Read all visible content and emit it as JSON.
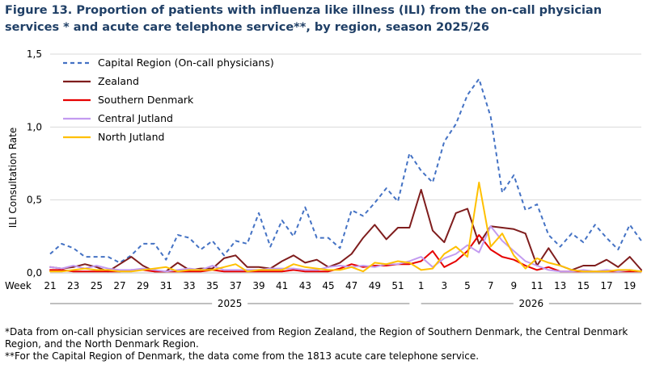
{
  "title": "Figure 13. Proportion of patients with influenza like illness (ILI) from the on-call physician services * and acute care telephone service**,  by region, season 2025/26",
  "footnotes": [
    "*Data from on-call physician services are received from Region Zealand, the Region of Southern Denmark, the Central Denmark Region, and the North Denmark Region.",
    "**For the Capital Region of Denmark, the data come from the 1813 acute care telephone service."
  ],
  "chart_data": {
    "type": "line",
    "title": "Figure 13. Proportion of patients with influenza like illness (ILI) from the on-call physician services * and acute care telephone service**,  by region, season 2025/26",
    "ylabel": "ILI Consultation Rate",
    "xlabel_prefix": "Week",
    "ylim": [
      0,
      1.5
    ],
    "yticks": [
      "0,0",
      "0,5",
      "1,0",
      "1,5"
    ],
    "grid": "horizontal",
    "legend": "top-left",
    "x": [
      21,
      22,
      23,
      24,
      25,
      26,
      27,
      28,
      29,
      30,
      31,
      32,
      33,
      34,
      35,
      36,
      37,
      38,
      39,
      40,
      41,
      42,
      43,
      44,
      45,
      46,
      47,
      48,
      49,
      50,
      51,
      52,
      1,
      2,
      3,
      4,
      5,
      6,
      7,
      8,
      9,
      10,
      11,
      12,
      13,
      14,
      15,
      16,
      17,
      18,
      19,
      20
    ],
    "xtick_labels": [
      "21",
      "23",
      "25",
      "27",
      "29",
      "31",
      "33",
      "35",
      "37",
      "39",
      "41",
      "43",
      "45",
      "47",
      "49",
      "51",
      "1",
      "3",
      "5",
      "7",
      "9",
      "11",
      "13",
      "15",
      "17",
      "19"
    ],
    "year_groups": [
      {
        "label": "2025",
        "from": 21,
        "to": 52
      },
      {
        "label": "2026",
        "from": 1,
        "to": 20
      }
    ],
    "series": [
      {
        "name": "Capital Region (On-call physicians)",
        "color": "#4472c4",
        "dash": "dashed",
        "values": [
          0.13,
          0.2,
          0.17,
          0.11,
          0.11,
          0.11,
          0.07,
          0.12,
          0.2,
          0.2,
          0.09,
          0.26,
          0.24,
          0.16,
          0.22,
          0.12,
          0.22,
          0.2,
          0.41,
          0.18,
          0.36,
          0.25,
          0.45,
          0.24,
          0.24,
          0.17,
          0.43,
          0.39,
          0.48,
          0.58,
          0.49,
          0.82,
          0.7,
          0.62,
          0.9,
          1.02,
          1.22,
          1.33,
          1.07,
          0.55,
          0.67,
          0.43,
          0.47,
          0.26,
          0.18,
          0.27,
          0.21,
          0.33,
          0.24,
          0.16,
          0.33,
          0.22
        ]
      },
      {
        "name": "Zealand",
        "color": "#7f1d1d",
        "dash": "solid",
        "values": [
          0.04,
          0.03,
          0.04,
          0.06,
          0.04,
          0.01,
          0.06,
          0.11,
          0.05,
          0.01,
          0.01,
          0.07,
          0.02,
          0.03,
          0.03,
          0.1,
          0.12,
          0.04,
          0.04,
          0.03,
          0.08,
          0.12,
          0.07,
          0.09,
          0.04,
          0.07,
          0.13,
          0.24,
          0.33,
          0.23,
          0.31,
          0.31,
          0.57,
          0.29,
          0.21,
          0.41,
          0.44,
          0.2,
          0.32,
          0.31,
          0.3,
          0.27,
          0.05,
          0.17,
          0.05,
          0.02,
          0.05,
          0.05,
          0.09,
          0.04,
          0.11,
          0.02
        ]
      },
      {
        "name": "Southern Denmark",
        "color": "#e60000",
        "dash": "solid",
        "values": [
          0.02,
          0.02,
          0.01,
          0.01,
          0.01,
          0.01,
          0.01,
          0.02,
          0.02,
          0.01,
          0.01,
          0.01,
          0.01,
          0.01,
          0.02,
          0.01,
          0.01,
          0.01,
          0.01,
          0.01,
          0.01,
          0.02,
          0.01,
          0.01,
          0.01,
          0.03,
          0.06,
          0.04,
          0.05,
          0.05,
          0.06,
          0.06,
          0.08,
          0.15,
          0.04,
          0.08,
          0.15,
          0.26,
          0.16,
          0.11,
          0.09,
          0.05,
          0.02,
          0.04,
          0.01,
          0.01,
          0.01,
          0.01,
          0.01,
          0.01,
          0.01,
          0.01
        ]
      },
      {
        "name": "Central Jutland",
        "color": "#c39bf0",
        "dash": "solid",
        "values": [
          0.04,
          0.03,
          0.05,
          0.03,
          0.05,
          0.03,
          0.02,
          0.02,
          0.03,
          0.02,
          0.01,
          0.02,
          0.03,
          0.02,
          0.05,
          0.02,
          0.02,
          0.02,
          0.02,
          0.03,
          0.03,
          0.03,
          0.02,
          0.02,
          0.04,
          0.05,
          0.04,
          0.05,
          0.04,
          0.06,
          0.06,
          0.08,
          0.11,
          0.04,
          0.1,
          0.13,
          0.19,
          0.14,
          0.32,
          0.22,
          0.15,
          0.08,
          0.05,
          0.02,
          0.01,
          0.01,
          0.02,
          0.01,
          0.02,
          0.01,
          0.02,
          0.01
        ]
      },
      {
        "name": "North Jutland",
        "color": "#ffc000",
        "dash": "solid",
        "values": [
          0.01,
          0.01,
          0.02,
          0.03,
          0.02,
          0.02,
          0.01,
          0.01,
          0.02,
          0.03,
          0.04,
          0.01,
          0.02,
          0.02,
          0.02,
          0.04,
          0.06,
          0.01,
          0.02,
          0.02,
          0.02,
          0.06,
          0.04,
          0.03,
          0.02,
          0.02,
          0.04,
          0.01,
          0.07,
          0.06,
          0.08,
          0.07,
          0.02,
          0.03,
          0.13,
          0.18,
          0.11,
          0.62,
          0.18,
          0.27,
          0.12,
          0.03,
          0.1,
          0.07,
          0.05,
          0.02,
          0.01,
          0.01,
          0.01,
          0.02,
          0.02,
          0.01
        ]
      }
    ]
  }
}
